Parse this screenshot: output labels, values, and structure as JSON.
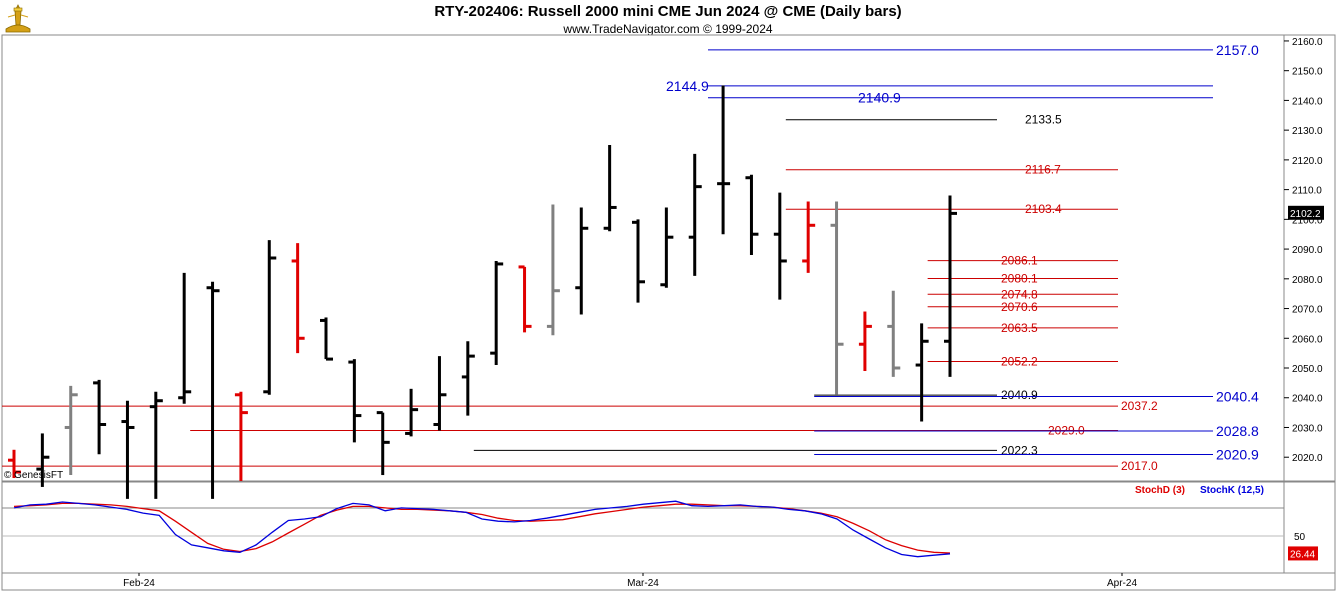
{
  "header": {
    "title": "RTY-202406:  Russell 2000 mini CME Jun 2024 @ CME  (Daily bars)",
    "subtitle": "www.TradeNavigator.com © 1999-2024",
    "copyright": "© GenesisFT"
  },
  "colors": {
    "up_bar": "#000000",
    "down_bar": "#e00000",
    "neutral_bar": "#808080",
    "blue_level": "#0000cc",
    "red_level": "#cc0000",
    "black_level": "#000000",
    "stoch_d": "#dd0000",
    "stoch_k": "#0000dd",
    "last_price_box": "#000000",
    "stoch_box": "#e00000"
  },
  "chart_data": [
    {
      "type": "ohlc",
      "title": "RTY-202406:  Russell 2000 mini CME Jun 2024 @ CME  (Daily bars)",
      "y_axis": {
        "min": 2012,
        "max": 2162,
        "ticks": [
          2020.0,
          2030.0,
          2040.0,
          2050.0,
          2060.0,
          2070.0,
          2080.0,
          2090.0,
          2100.0,
          2110.0,
          2120.0,
          2130.0,
          2140.0,
          2150.0,
          2160.0
        ]
      },
      "x_axis": {
        "labels": [
          "Feb-24",
          "Mar-24",
          "Apr-24"
        ]
      },
      "last_price": "2102.2",
      "bars": [
        {
          "c": "red",
          "h": 2022.5,
          "l": 2013,
          "o": 2019,
          "cl": 2015
        },
        {
          "c": "black",
          "h": 2028,
          "l": 2010,
          "o": 2016,
          "cl": 2020
        },
        {
          "c": "gray",
          "h": 2044,
          "l": 2014,
          "o": 2030,
          "cl": 2041
        },
        {
          "c": "black",
          "h": 2046,
          "l": 2021,
          "o": 2045,
          "cl": 2031
        },
        {
          "c": "black",
          "h": 2039,
          "l": 2006,
          "o": 2032,
          "cl": 2030
        },
        {
          "c": "black",
          "h": 2042,
          "l": 2006,
          "o": 2037,
          "cl": 2039
        },
        {
          "c": "black",
          "h": 2082,
          "l": 2038,
          "o": 2040,
          "cl": 2042
        },
        {
          "c": "black",
          "h": 2079,
          "l": 2006,
          "o": 2077,
          "cl": 2076
        },
        {
          "c": "red",
          "h": 2042,
          "l": 2012,
          "o": 2041,
          "cl": 2035
        },
        {
          "c": "black",
          "h": 2093,
          "l": 2041,
          "o": 2042,
          "cl": 2087
        },
        {
          "c": "red",
          "h": 2092,
          "l": 2055,
          "o": 2086,
          "cl": 2060
        },
        {
          "c": "black",
          "h": 2067,
          "l": 2053,
          "o": 2066,
          "cl": 2053
        },
        {
          "c": "black",
          "h": 2053,
          "l": 2025,
          "o": 2052,
          "cl": 2034
        },
        {
          "c": "black",
          "h": 2035,
          "l": 2014,
          "o": 2035,
          "cl": 2025
        },
        {
          "c": "black",
          "h": 2043,
          "l": 2027,
          "o": 2028,
          "cl": 2036
        },
        {
          "c": "black",
          "h": 2054,
          "l": 2029,
          "o": 2031,
          "cl": 2041
        },
        {
          "c": "black",
          "h": 2059,
          "l": 2034,
          "o": 2047,
          "cl": 2054
        },
        {
          "c": "black",
          "h": 2086,
          "l": 2051,
          "o": 2055,
          "cl": 2085
        },
        {
          "c": "red",
          "h": 2084,
          "l": 2062,
          "o": 2084,
          "cl": 2064
        },
        {
          "c": "gray",
          "h": 2105,
          "l": 2061,
          "o": 2064,
          "cl": 2076
        },
        {
          "c": "black",
          "h": 2104,
          "l": 2068,
          "o": 2077,
          "cl": 2097
        },
        {
          "c": "black",
          "h": 2125,
          "l": 2096,
          "o": 2097,
          "cl": 2104
        },
        {
          "c": "black",
          "h": 2100,
          "l": 2072,
          "o": 2099,
          "cl": 2079
        },
        {
          "c": "black",
          "h": 2104,
          "l": 2077,
          "o": 2078,
          "cl": 2094
        },
        {
          "c": "black",
          "h": 2122,
          "l": 2081,
          "o": 2094,
          "cl": 2111
        },
        {
          "c": "black",
          "h": 2145,
          "l": 2095,
          "o": 2112,
          "cl": 2112
        },
        {
          "c": "black",
          "h": 2115,
          "l": 2088,
          "o": 2114,
          "cl": 2095
        },
        {
          "c": "black",
          "h": 2109,
          "l": 2073,
          "o": 2095,
          "cl": 2086
        },
        {
          "c": "red",
          "h": 2106,
          "l": 2082,
          "o": 2086,
          "cl": 2098
        },
        {
          "c": "gray",
          "h": 2106,
          "l": 2041,
          "o": 2098,
          "cl": 2058
        },
        {
          "c": "red",
          "h": 2069,
          "l": 2049,
          "o": 2058,
          "cl": 2064
        },
        {
          "c": "gray",
          "h": 2076,
          "l": 2047,
          "o": 2064,
          "cl": 2050
        },
        {
          "c": "black",
          "h": 2065,
          "l": 2032,
          "o": 2051,
          "cl": 2059
        },
        {
          "c": "black",
          "h": 2108,
          "l": 2047,
          "o": 2059,
          "cl": 2102
        }
      ],
      "levels": [
        {
          "label": "2157.0",
          "value": 2157.0,
          "color": "blue"
        },
        {
          "label": "2144.9",
          "value": 2144.9,
          "color": "blue"
        },
        {
          "label": "2140.9",
          "value": 2140.9,
          "color": "blue"
        },
        {
          "label": "2133.5",
          "value": 2133.5,
          "color": "black"
        },
        {
          "label": "2116.7",
          "value": 2116.7,
          "color": "red"
        },
        {
          "label": "2103.4",
          "value": 2103.4,
          "color": "red"
        },
        {
          "label": "2086.1",
          "value": 2086.1,
          "color": "red"
        },
        {
          "label": "2080.1",
          "value": 2080.1,
          "color": "red"
        },
        {
          "label": "2074.8",
          "value": 2074.8,
          "color": "red"
        },
        {
          "label": "2070.6",
          "value": 2070.6,
          "color": "red"
        },
        {
          "label": "2063.5",
          "value": 2063.5,
          "color": "red"
        },
        {
          "label": "2052.2",
          "value": 2052.2,
          "color": "red"
        },
        {
          "label": "2040.9",
          "value": 2040.9,
          "color": "black"
        },
        {
          "label": "2040.4",
          "value": 2040.4,
          "color": "blue"
        },
        {
          "label": "2037.2",
          "value": 2037.2,
          "color": "red"
        },
        {
          "label": "2029.0",
          "value": 2029.0,
          "color": "red"
        },
        {
          "label": "2028.8",
          "value": 2028.8,
          "color": "blue"
        },
        {
          "label": "2022.3",
          "value": 2022.3,
          "color": "black"
        },
        {
          "label": "2020.9",
          "value": 2020.9,
          "color": "blue"
        },
        {
          "label": "2017.0",
          "value": 2017.0,
          "color": "red"
        }
      ]
    },
    {
      "type": "line",
      "title": "",
      "y_axis": {
        "min": 0,
        "max": 100,
        "ticks": [
          50
        ]
      },
      "legend": [
        "StochD (3)",
        "StochK (12,5)"
      ],
      "last_value": "26.44",
      "series": [
        {
          "name": "StochD (3)",
          "color": "red",
          "values": [
            90,
            91,
            92,
            94,
            94,
            93,
            92,
            90,
            87,
            84,
            70,
            55,
            40,
            32,
            29,
            33,
            42,
            54,
            66,
            78,
            85,
            90,
            90,
            88,
            86,
            86,
            85,
            84,
            82,
            79,
            74,
            71,
            70,
            71,
            72,
            76,
            80,
            83,
            86,
            89,
            91,
            93,
            93,
            92,
            91,
            91,
            90,
            89,
            87,
            84,
            81,
            76,
            67,
            57,
            45,
            37,
            31,
            28,
            27
          ]
        },
        {
          "name": "StochK (12,5)",
          "color": "blue",
          "values": [
            88,
            92,
            93,
            96,
            94,
            92,
            89,
            86,
            81,
            78,
            52,
            38,
            34,
            30,
            28,
            38,
            55,
            71,
            73,
            76,
            87,
            94,
            92,
            84,
            88,
            87,
            86,
            84,
            82,
            73,
            70,
            69,
            71,
            74,
            78,
            82,
            86,
            88,
            90,
            93,
            95,
            97,
            91,
            90,
            91,
            92,
            90,
            89,
            86,
            84,
            80,
            73,
            58,
            46,
            34,
            25,
            22,
            24,
            26
          ]
        }
      ]
    }
  ]
}
